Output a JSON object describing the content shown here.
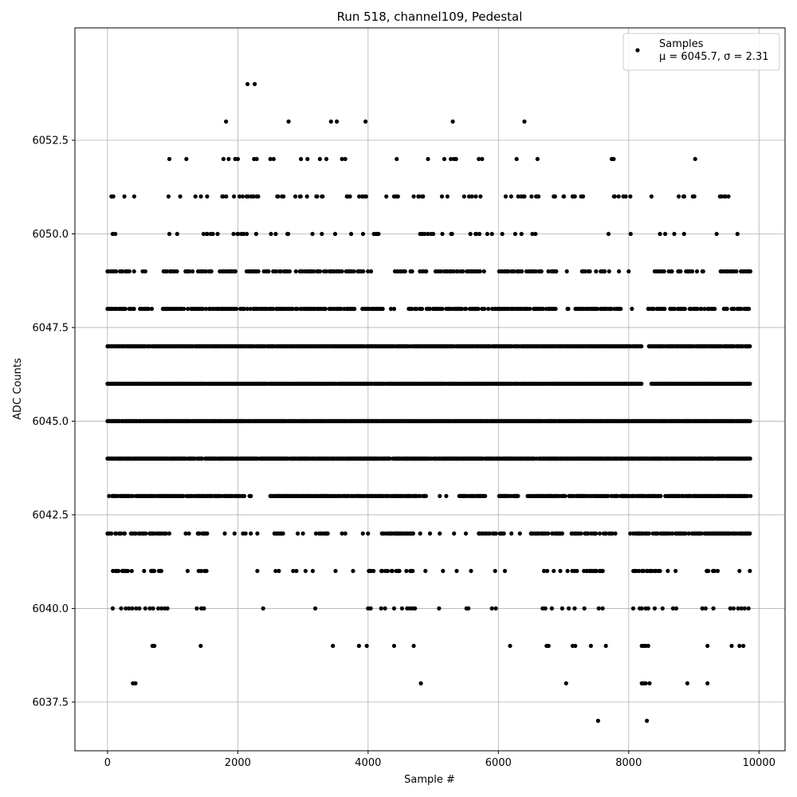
{
  "chart_data": {
    "type": "scatter",
    "title": "Run 518, channel109, Pedestal",
    "xlabel": "Sample #",
    "ylabel": "ADC Counts",
    "xlim": [
      -500,
      10400
    ],
    "ylim": [
      6036.2,
      6055.5
    ],
    "xticks": [
      0,
      2000,
      4000,
      6000,
      8000,
      10000
    ],
    "yticks": [
      6037.5,
      6040.0,
      6042.5,
      6045.0,
      6047.5,
      6050.0,
      6052.5
    ],
    "grid": true,
    "legend_position": "top-right",
    "marker_color": "#000000",
    "series": [
      {
        "name": "Samples",
        "stat_label": "$\\mu$ = 6045.7, $\\sigma$ = 2.31",
        "stat_display": "μ = 6045.7, σ = 2.31",
        "n_samples": 9870,
        "x_range": [
          0,
          9870
        ],
        "levels": [
          {
            "y": 6054,
            "x": [
              2150,
              2260
            ]
          },
          {
            "y": 6053,
            "x": [
              1820,
              2780,
              3430,
              3520,
              3960,
              5300,
              6400
            ]
          },
          {
            "y": 6052,
            "x": [
              950,
              1210,
              1780,
              1860,
              1960,
              2000,
              2250,
              2290,
              2500,
              2550,
              2970,
              3070,
              3260,
              3360,
              3600,
              3650,
              4440,
              4920,
              5170,
              5270,
              5320,
              5350,
              5700,
              5750,
              6280,
              6600,
              7740,
              7770,
              9020
            ]
          },
          {
            "y": 6051,
            "ranges": [
              [
                30,
                150
              ],
              [
                900,
                1250
              ],
              [
                1350,
                1550
              ],
              [
                1750,
                2350
              ],
              [
                2450,
                3800
              ],
              [
                3850,
                4000
              ],
              [
                4350,
                4500
              ],
              [
                4700,
                5000
              ],
              [
                5050,
                5250
              ],
              [
                5450,
                5800
              ],
              [
                6100,
                6650
              ],
              [
                6850,
                7300
              ],
              [
                7750,
                8050
              ],
              [
                8600,
                9050
              ],
              [
                9400,
                9600
              ]
            ],
            "density": 0.15,
            "x": [
              60,
              260,
              410,
              4280,
              5550,
              6870,
              7000,
              7300,
              8350,
              9470
            ]
          },
          {
            "y": 6050,
            "ranges": [
              [
                950,
                1150
              ],
              [
                1450,
                1700
              ],
              [
                1850,
                2300
              ],
              [
                2450,
                3500
              ],
              [
                3850,
                4200
              ],
              [
                4700,
                5400
              ],
              [
                5650,
                5900
              ],
              [
                6150,
                6650
              ]
            ],
            "density": 0.1,
            "x": [
              80,
              120,
              1530,
              3740,
              4160,
              4800,
              5000,
              5140,
              5570,
              5900,
              6060,
              7690,
              8030,
              8480,
              8560,
              8700,
              8850,
              9350,
              9670
            ]
          },
          {
            "y": 6049,
            "ranges": [
              [
                0,
                450
              ],
              [
                850,
                1600
              ],
              [
                1700,
                2000
              ],
              [
                2100,
                3600
              ],
              [
                3650,
                4050
              ],
              [
                4400,
                4900
              ],
              [
                5000,
                5800
              ],
              [
                6000,
                6900
              ],
              [
                7200,
                7650
              ],
              [
                8400,
                9150
              ],
              [
                9400,
                9870
              ]
            ],
            "density": 0.4,
            "x": [
              540,
              580,
              7050,
              7700,
              7850,
              8000
            ]
          },
          {
            "y": 6048,
            "ranges": [
              [
                0,
                450
              ],
              [
                500,
                700
              ],
              [
                850,
                3800
              ],
              [
                3900,
                4300
              ],
              [
                4600,
                5700
              ],
              [
                5750,
                6900
              ],
              [
                7050,
                7900
              ],
              [
                8300,
                9300
              ],
              [
                9450,
                9870
              ]
            ],
            "density": 0.55,
            "x": [
              4200,
              4350,
              4400,
              8050,
              9320
            ]
          },
          {
            "y": 6047,
            "ranges": [
              [
                0,
                8200
              ],
              [
                8300,
                9870
              ]
            ],
            "density": 0.85
          },
          {
            "y": 6046,
            "ranges": [
              [
                0,
                8200
              ],
              [
                8350,
                9870
              ]
            ],
            "density": 0.9
          },
          {
            "y": 6045,
            "ranges": [
              [
                0,
                9870
              ]
            ],
            "density": 0.95
          },
          {
            "y": 6044,
            "ranges": [
              [
                0,
                9870
              ]
            ],
            "density": 0.9
          },
          {
            "y": 6043,
            "ranges": [
              [
                0,
                2100
              ],
              [
                2500,
                4900
              ],
              [
                5400,
                5800
              ],
              [
                6000,
                6300
              ],
              [
                6450,
                9870
              ]
            ],
            "density": 0.7,
            "x": [
              2180,
              2200,
              5100,
              5200
            ]
          },
          {
            "y": 6042,
            "ranges": [
              [
                0,
                950
              ],
              [
                1350,
                1550
              ],
              [
                2550,
                2700
              ],
              [
                3200,
                3400
              ],
              [
                4200,
                4700
              ],
              [
                5700,
                6100
              ],
              [
                6500,
                7800
              ],
              [
                8000,
                9870
              ]
            ],
            "density": 0.5,
            "x": [
              1200,
              1250,
              1800,
              1950,
              2080,
              2120,
              2200,
              2300,
              2920,
              3000,
              3600,
              3650,
              3920,
              4000,
              4800,
              4950,
              5100,
              5320,
              5500,
              6200,
              6330
            ]
          },
          {
            "y": 6041,
            "ranges": [
              [
                0,
                400
              ],
              [
                550,
                850
              ],
              [
                4000,
                4700
              ],
              [
                7050,
                7650
              ],
              [
                8000,
                8500
              ],
              [
                9150,
                9400
              ]
            ],
            "density": 0.3,
            "x": [
              1230,
              1400,
              1440,
              1490,
              1520,
              2300,
              2580,
              2630,
              2850,
              2900,
              3040,
              3150,
              3500,
              3770,
              4880,
              5150,
              5360,
              5580,
              5950,
              6100,
              6700,
              6750,
              6850,
              6950,
              8600,
              8720,
              9700,
              9860
            ]
          },
          {
            "y": 6040,
            "x": [
              80,
              210,
              280,
              330,
              380,
              440,
              490,
              580,
              650,
              700,
              780,
              830,
              880,
              920,
              1370,
              1440,
              1480,
              2390,
              3190,
              4000,
              4040,
              4200,
              4260,
              4400,
              4520,
              4600,
              4640,
              4680,
              4720,
              5090,
              5510,
              5540,
              5900,
              5960,
              6680,
              6720,
              6820,
              6980,
              7080,
              7170,
              7320,
              7540,
              7600,
              8070,
              8170,
              8200,
              8260,
              8300,
              8400,
              8520,
              8680,
              8730,
              9130,
              9180,
              9300,
              9560,
              9610,
              9680,
              9730,
              9780,
              9840
            ]
          },
          {
            "y": 6039,
            "x": [
              690,
              720,
              1430,
              3460,
              3860,
              3980,
              4400,
              4700,
              6180,
              6740,
              6770,
              7140,
              7180,
              7420,
              7650,
              8200,
              8230,
              8260,
              8300,
              9210,
              9580,
              9700,
              9760
            ]
          },
          {
            "y": 6038,
            "x": [
              390,
              430,
              4810,
              7040,
              8200,
              8230,
              8260,
              8320,
              8900,
              9210
            ]
          },
          {
            "y": 6037,
            "x": [
              7530,
              8280
            ]
          }
        ]
      }
    ]
  }
}
